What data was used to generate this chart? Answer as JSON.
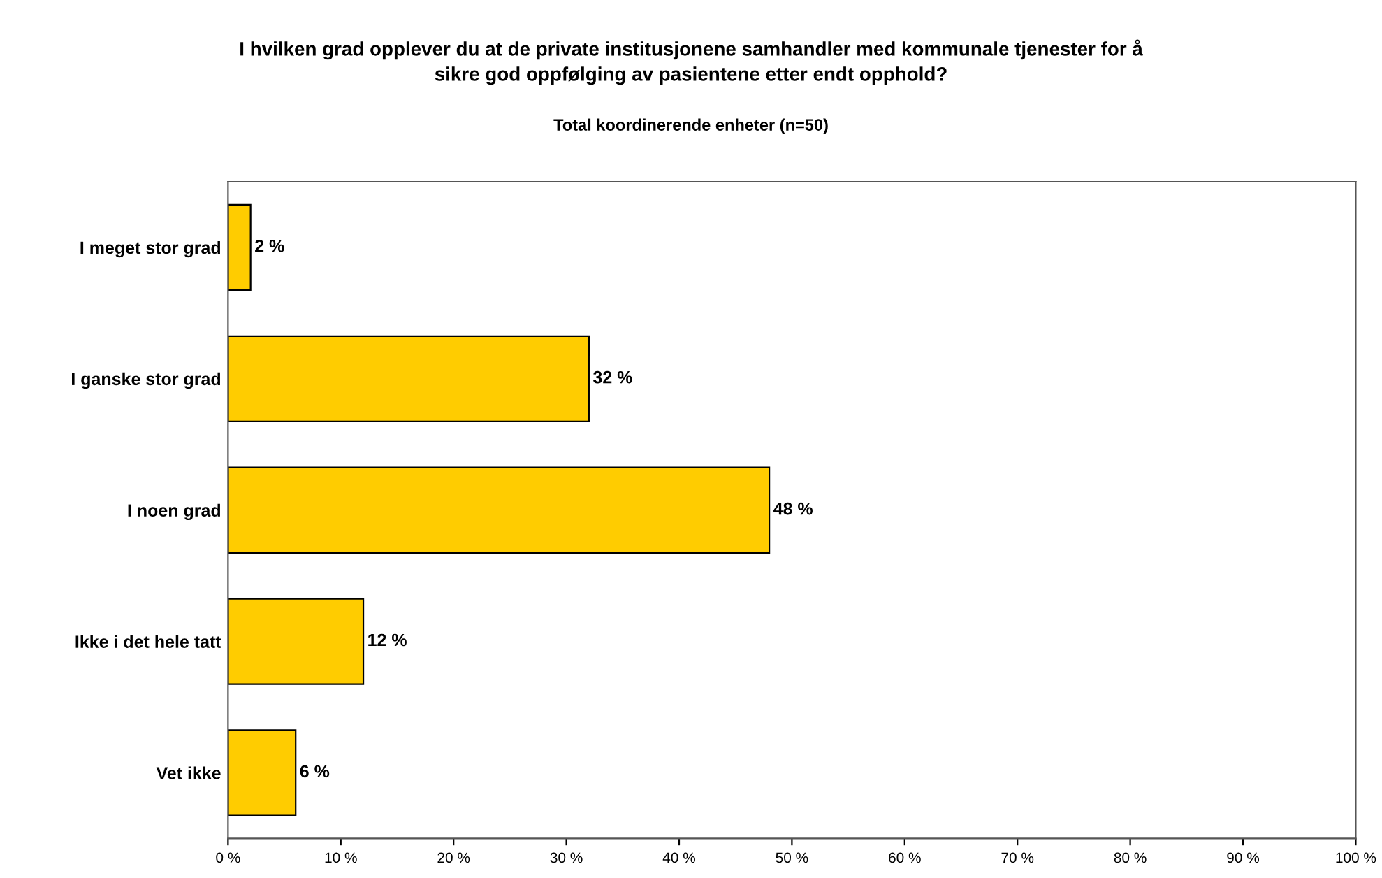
{
  "chart_data": {
    "type": "bar",
    "orientation": "horizontal",
    "title": "I hvilken grad opplever du at de private institusjonene samhandler med kommunale tjenester for å\nsikre god oppfølging av pasientene etter endt opphold?",
    "subtitle": "Total koordinerende enheter (n=50)",
    "categories": [
      "I meget stor grad",
      "I ganske stor grad",
      "I noen grad",
      "Ikke i det hele tatt",
      "Vet ikke"
    ],
    "values": [
      2,
      32,
      48,
      12,
      6
    ],
    "color": "#ffcc00",
    "value_labels": [
      "2 %",
      "32 %",
      "48 %",
      "12 %",
      "6 %"
    ],
    "xlim": [
      0,
      100
    ],
    "xticks": [
      {
        "value": 0,
        "label": "0 %"
      },
      {
        "value": 10,
        "label": "10 %"
      },
      {
        "value": 20,
        "label": "20 %"
      },
      {
        "value": 30,
        "label": "30 %"
      },
      {
        "value": 40,
        "label": "40 %"
      },
      {
        "value": 50,
        "label": "50 %"
      },
      {
        "value": 60,
        "label": "60 %"
      },
      {
        "value": 70,
        "label": "70 %"
      },
      {
        "value": 80,
        "label": "80 %"
      },
      {
        "value": 90,
        "label": "90 %"
      },
      {
        "value": 100,
        "label": "100 %"
      }
    ],
    "grid": false,
    "legend": false
  }
}
